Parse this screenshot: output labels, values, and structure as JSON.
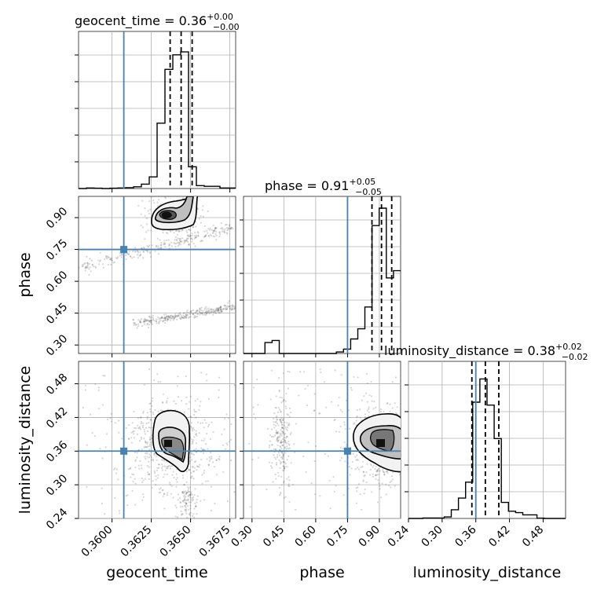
{
  "chart_data": {
    "type": "corner",
    "parameters": [
      "geocent_time",
      "phase",
      "luminosity_distance"
    ],
    "truth": {
      "geocent_time": 0.36075,
      "phase": 0.75,
      "luminosity_distance": 0.36
    },
    "truth_color": "#4682b4",
    "ranges": {
      "geocent_time": [
        0.35787,
        0.36787
      ],
      "phase": [
        0.26,
        1.0
      ],
      "luminosity_distance": [
        0.24,
        0.52
      ]
    },
    "titles": {
      "geocent_time": {
        "name": "geocent_time",
        "value": "0.36",
        "plus": "+0.00",
        "minus": "−0.00"
      },
      "phase": {
        "name": "phase",
        "value": "0.91",
        "plus": "+0.05",
        "minus": "−0.05"
      },
      "luminosity_distance": {
        "name": "luminosity_distance",
        "value": "0.38",
        "plus": "+0.02",
        "minus": "−0.02"
      }
    },
    "quantiles": {
      "geocent_time": [
        0.3637,
        0.3644,
        0.3651
      ],
      "phase": [
        0.865,
        0.91,
        0.958
      ],
      "luminosity_distance": [
        0.353,
        0.377,
        0.401
      ]
    },
    "ticks": {
      "geocent_time": {
        "values": [
          0.36,
          0.3625,
          0.365,
          0.3675
        ],
        "labels": [
          "0.3600",
          "0.3625",
          "0.3650",
          "0.3675"
        ]
      },
      "phase": {
        "values": [
          0.3,
          0.45,
          0.6,
          0.75,
          0.9
        ],
        "labels": [
          "0.30",
          "0.45",
          "0.60",
          "0.75",
          "0.90"
        ]
      },
      "luminosity_distance": {
        "values": [
          0.24,
          0.3,
          0.36,
          0.42,
          0.48
        ],
        "labels": [
          "0.24",
          "0.30",
          "0.36",
          "0.42",
          "0.48"
        ]
      }
    },
    "axis_labels": {
      "x": [
        "geocent_time",
        "phase",
        "luminosity_distance"
      ],
      "y": [
        "phase",
        "luminosity_distance"
      ]
    },
    "hist": {
      "geocent_time": [
        0,
        0.004,
        0.002,
        0,
        0.002,
        0.004,
        0.006,
        0.012,
        0.03,
        0.08,
        0.45,
        0.82,
        0.92,
        0.94,
        0.15,
        0.02,
        0.015,
        0.015,
        0.004,
        0.004
      ],
      "phase": [
        0,
        0,
        0,
        0.075,
        0.09,
        0,
        0,
        0,
        0,
        0,
        0,
        0,
        0,
        0.01,
        0.03,
        0.1,
        0.17,
        0.32,
        0.88,
        1.0,
        0.52,
        0.57
      ],
      "luminosity_distance": [
        0,
        0,
        0.003,
        0.003,
        0.003,
        0.01,
        0.06,
        0.14,
        0.25,
        0.8,
        0.96,
        0.78,
        0.55,
        0.11,
        0.05,
        0.04,
        0.025,
        0.025,
        0.002,
        0,
        0,
        0
      ]
    },
    "grid": true
  }
}
